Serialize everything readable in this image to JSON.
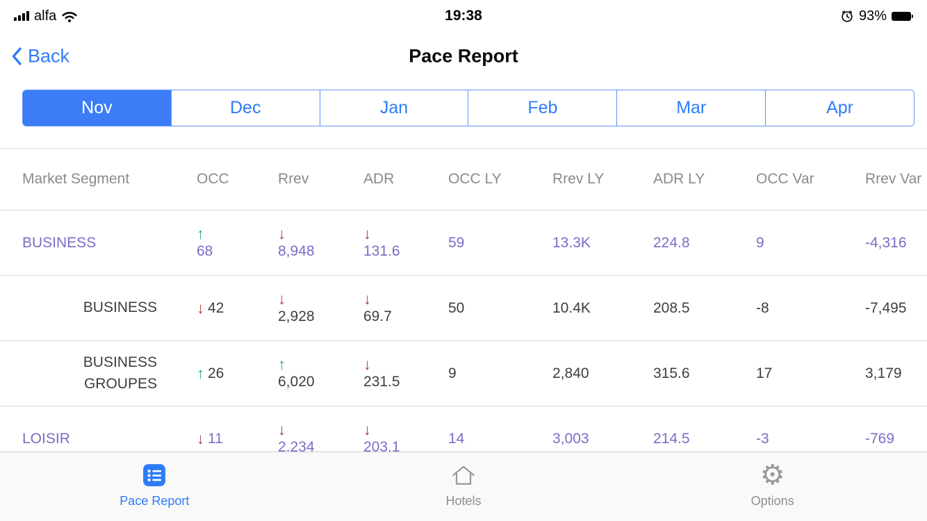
{
  "status_bar": {
    "carrier": "alfa",
    "time": "19:38",
    "battery_percent": "93%"
  },
  "nav": {
    "back_label": "Back",
    "title": "Pace Report"
  },
  "months": {
    "selected": "Nov",
    "items": [
      "Nov",
      "Dec",
      "Jan",
      "Feb",
      "Mar",
      "Apr"
    ]
  },
  "table": {
    "headers": [
      "Market Segment",
      "OCC",
      "Rrev",
      "ADR",
      "OCC LY",
      "Rrev LY",
      "ADR LY",
      "OCC Var",
      "Rrev Var"
    ],
    "rows": [
      {
        "segment": "BUSINESS",
        "level": "parent",
        "cells": [
          {
            "arrow": "up",
            "value": "68",
            "stacked": true
          },
          {
            "arrow": "down",
            "value": "8,948",
            "stacked": true
          },
          {
            "arrow": "down",
            "value": "131.6",
            "stacked": true
          },
          {
            "value": "59"
          },
          {
            "value": "13.3K"
          },
          {
            "value": "224.8"
          },
          {
            "value": "9"
          },
          {
            "value": "-4,316"
          }
        ]
      },
      {
        "segment": "BUSINESS",
        "level": "child",
        "cells": [
          {
            "arrow": "down",
            "value": "42",
            "stacked": false
          },
          {
            "arrow": "down",
            "value": "2,928",
            "stacked": true
          },
          {
            "arrow": "down",
            "value": "69.7",
            "stacked": true
          },
          {
            "value": "50"
          },
          {
            "value": "10.4K"
          },
          {
            "value": "208.5"
          },
          {
            "value": "-8"
          },
          {
            "value": "-7,495"
          }
        ]
      },
      {
        "segment": "BUSINESS GROUPES",
        "level": "child",
        "cells": [
          {
            "arrow": "up",
            "value": "26",
            "stacked": false
          },
          {
            "arrow": "up",
            "value": "6,020",
            "stacked": true
          },
          {
            "arrow": "down",
            "value": "231.5",
            "stacked": true
          },
          {
            "value": "9"
          },
          {
            "value": "2,840"
          },
          {
            "value": "315.6"
          },
          {
            "value": "17"
          },
          {
            "value": "3,179"
          }
        ]
      },
      {
        "segment": "LOISIR",
        "level": "parent",
        "cells": [
          {
            "arrow": "down",
            "value": "11",
            "stacked": false
          },
          {
            "arrow": "down",
            "value": "2,234",
            "stacked": true
          },
          {
            "arrow": "down",
            "value": "203.1",
            "stacked": true
          },
          {
            "value": "14"
          },
          {
            "value": "3,003"
          },
          {
            "value": "214.5"
          },
          {
            "value": "-3"
          },
          {
            "value": "-769"
          }
        ]
      }
    ]
  },
  "tab_bar": {
    "tabs": [
      {
        "label": "Pace Report",
        "icon": "list-icon",
        "active": true
      },
      {
        "label": "Hotels",
        "icon": "home-icon",
        "active": false
      },
      {
        "label": "Options",
        "icon": "gear-icon",
        "active": false
      }
    ]
  },
  "colors": {
    "accent": "#2e7cf7",
    "purple": "#7d6bc7",
    "green": "#2ea57d",
    "red": "#b43b3d"
  }
}
